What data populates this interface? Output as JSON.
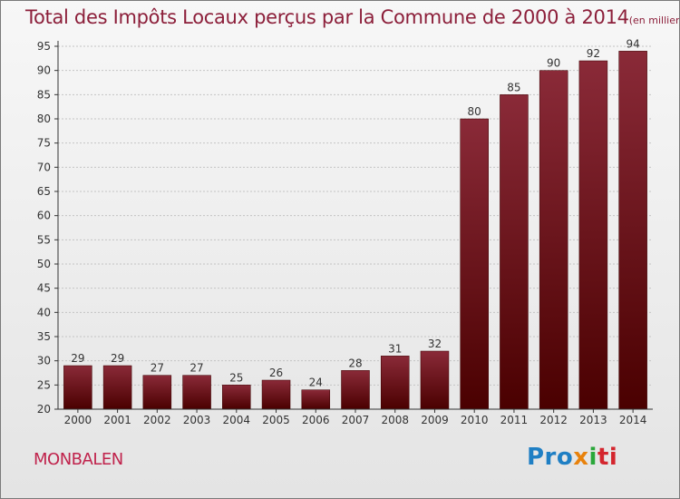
{
  "title": "Total des Impôts Locaux perçus par la Commune de 2000 à 2014",
  "unit": "(en milliers d'€)",
  "commune": "MONBALEN",
  "logo": {
    "text": "Proxiti",
    "p1": "Pro",
    "p2": "x",
    "p3": "i",
    "p4": "ti"
  },
  "colors": {
    "bar_top": "#8a2a38",
    "bar_bottom": "#4a0000",
    "title": "#8c1f3a",
    "commune": "#c0234c"
  },
  "chart_data": {
    "type": "bar",
    "title": "Total des Impôts Locaux perçus par la Commune de 2000 à 2014",
    "xlabel": "",
    "ylabel": "",
    "categories": [
      "2000",
      "2001",
      "2002",
      "2003",
      "2004",
      "2005",
      "2006",
      "2007",
      "2008",
      "2009",
      "2010",
      "2011",
      "2012",
      "2013",
      "2014"
    ],
    "values": [
      29,
      29,
      27,
      27,
      25,
      26,
      24,
      28,
      31,
      32,
      80,
      85,
      90,
      92,
      94
    ],
    "ylim": [
      20,
      95
    ],
    "yticks": [
      20,
      25,
      30,
      35,
      40,
      45,
      50,
      55,
      60,
      65,
      70,
      75,
      80,
      85,
      90,
      95
    ],
    "grid": true
  }
}
